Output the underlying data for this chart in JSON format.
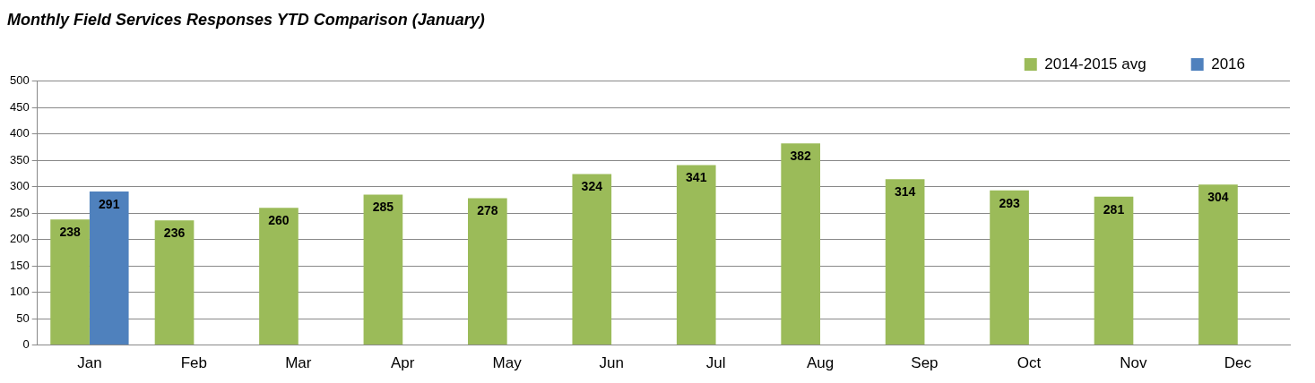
{
  "chart_data": {
    "type": "bar",
    "title": "Monthly Field Services Responses YTD Comparison (January)",
    "categories": [
      "Jan",
      "Feb",
      "Mar",
      "Apr",
      "May",
      "Jun",
      "Jul",
      "Aug",
      "Sep",
      "Oct",
      "Nov",
      "Dec"
    ],
    "series": [
      {
        "name": "2014-2015 avg",
        "color": "#9bbb59",
        "values": [
          238,
          236,
          260,
          285,
          278,
          324,
          341,
          382,
          314,
          293,
          281,
          304
        ]
      },
      {
        "name": "2016",
        "color": "#4f81bd",
        "values": [
          291,
          null,
          null,
          null,
          null,
          null,
          null,
          null,
          null,
          null,
          null,
          null
        ]
      }
    ],
    "ylim": [
      0,
      500
    ],
    "yticks": [
      0,
      50,
      100,
      150,
      200,
      250,
      300,
      350,
      400,
      450,
      500
    ],
    "grid": "y",
    "legend": "top right",
    "data_labels": true
  }
}
